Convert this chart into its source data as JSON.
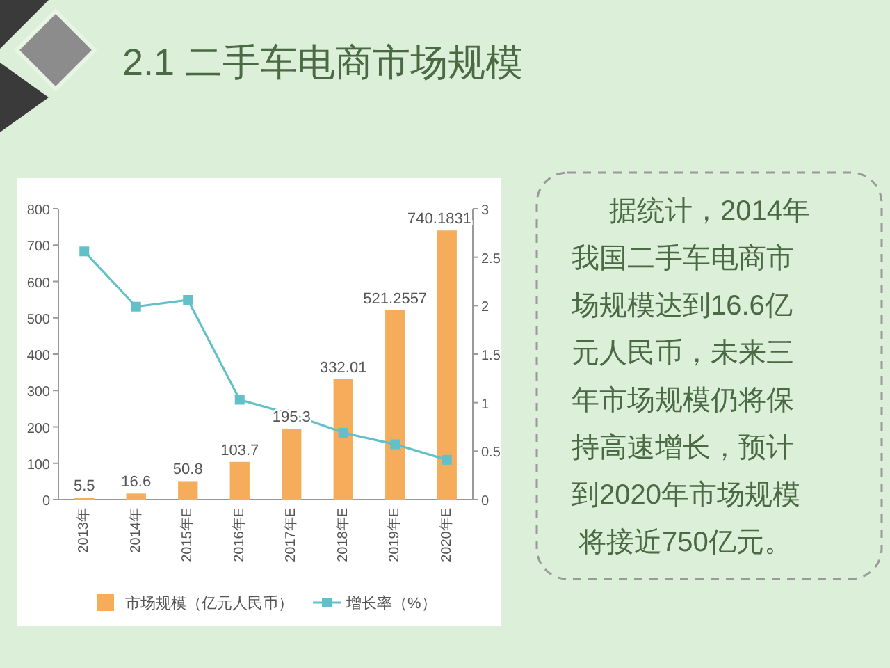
{
  "chart_data": [
    {
      "type": "bar",
      "title": "2.1 二手车电商市场规模",
      "categories": [
        "2013年",
        "2014年",
        "2015年E",
        "2016年E",
        "2017年E",
        "2018年E",
        "2019年E",
        "2020年E"
      ],
      "series": [
        {
          "name": "市场规模（亿元人民币）",
          "color": "#f5ad5c",
          "type": "bar",
          "values": [
            5.5,
            16.6,
            50.8,
            103.7,
            195.3,
            332.01,
            521.2557,
            740.1831
          ],
          "value_labels": [
            "5.5",
            "16.6",
            "50.8",
            "103.7",
            "195.3",
            "332.01",
            "521.2557",
            "740.1831"
          ]
        },
        {
          "name": "增长率（%）",
          "color": "#62c0c8",
          "type": "line",
          "axis": "y2",
          "marker": "square",
          "values": [
            2.56,
            1.99,
            2.06,
            1.03,
            0.88,
            0.69,
            0.57,
            0.41
          ]
        }
      ],
      "ylim": [
        0,
        800
      ],
      "yticks": [
        0,
        100,
        200,
        300,
        400,
        500,
        600,
        700,
        800
      ],
      "y2lim": [
        0,
        3
      ],
      "y2ticks": [
        0,
        0.5,
        1,
        1.5,
        2,
        2.5,
        3
      ],
      "grid": false,
      "legend": "bottom"
    },
    {
      "type": "other",
      "annotations": [
        "据统计，2014年",
        "我国二手车电商市",
        "场规模达到16.6亿",
        "元人民币，未来三",
        "年市场规模仍将保",
        "持高速增长，预计",
        "到2020年市场规模",
        "将接近750亿元。"
      ]
    }
  ]
}
